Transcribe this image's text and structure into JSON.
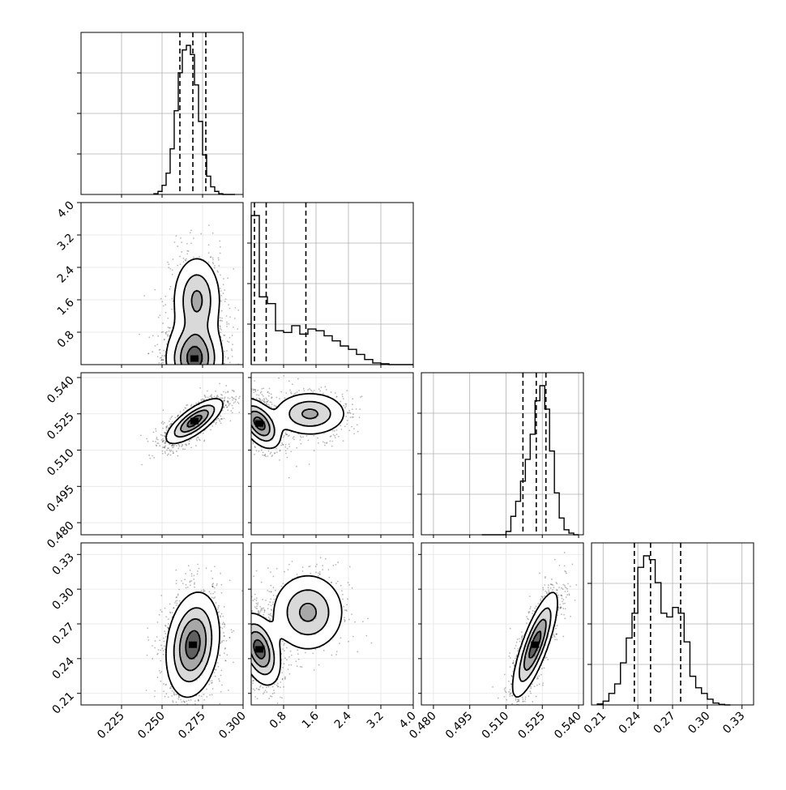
{
  "chart_data": {
    "type": "corner",
    "parameters": [
      {
        "id": "p0",
        "range": [
          0.2,
          0.3
        ],
        "ticks": [
          0.225,
          0.25,
          0.275,
          0.3
        ],
        "tick_labels": [
          "0.225",
          "0.250",
          "0.275",
          "0.300"
        ],
        "quantiles": [
          0.261,
          0.269,
          0.277
        ],
        "mode": 0.27,
        "spread": 0.0085
      },
      {
        "id": "p1",
        "range": [
          0.0,
          4.0
        ],
        "ticks": [
          0.8,
          1.6,
          2.4,
          3.2,
          4.0
        ],
        "tick_labels": [
          "0.8",
          "1.6",
          "2.4",
          "3.2",
          "4.0"
        ],
        "quantiles": [
          0.08,
          0.37,
          1.35
        ],
        "mode": 0.1,
        "spread": 0.5
      },
      {
        "id": "p2",
        "range": [
          0.475,
          0.542
        ],
        "ticks": [
          0.48,
          0.495,
          0.51,
          0.525,
          0.54
        ],
        "tick_labels": [
          "0.480",
          "0.495",
          "0.510",
          "0.525",
          "0.540"
        ],
        "quantiles": [
          0.517,
          0.5225,
          0.5265
        ],
        "mode": 0.5225,
        "spread": 0.0045
      },
      {
        "id": "p3",
        "range": [
          0.2,
          0.34
        ],
        "ticks": [
          0.21,
          0.24,
          0.27,
          0.3,
          0.33
        ],
        "tick_labels": [
          "0.21",
          "0.24",
          "0.27",
          "0.30",
          "0.33"
        ],
        "quantiles": [
          0.237,
          0.251,
          0.277
        ],
        "mode": 0.245,
        "spread": 0.02
      }
    ],
    "histograms": [
      {
        "param": "p0",
        "bins": [
          0.245,
          0.2475,
          0.25,
          0.2525,
          0.255,
          0.2575,
          0.26,
          0.2625,
          0.265,
          0.2675,
          0.27,
          0.2725,
          0.275,
          0.2775,
          0.28,
          0.2825,
          0.285,
          0.2875,
          0.29,
          0.2925,
          0.295
        ],
        "counts": [
          0.5,
          2,
          6,
          14,
          30,
          55,
          80,
          95,
          98,
          92,
          72,
          48,
          26,
          12,
          5,
          2,
          0.5,
          0,
          0,
          0
        ]
      },
      {
        "param": "p1",
        "bins": [
          0.0,
          0.2,
          0.4,
          0.6,
          0.8,
          1.0,
          1.2,
          1.4,
          1.6,
          1.8,
          2.0,
          2.2,
          2.4,
          2.6,
          2.8,
          3.0,
          3.2,
          3.4,
          3.6,
          3.8,
          4.0
        ],
        "counts": [
          88,
          40,
          36,
          20,
          19,
          23,
          18,
          21,
          20,
          17,
          14,
          11,
          9,
          6,
          3,
          1,
          0.5,
          0,
          0,
          0
        ]
      },
      {
        "param": "p2",
        "bins": [
          0.5,
          0.502,
          0.504,
          0.506,
          0.508,
          0.51,
          0.512,
          0.514,
          0.516,
          0.518,
          0.52,
          0.522,
          0.524,
          0.526,
          0.528,
          0.53,
          0.532,
          0.534,
          0.536,
          0.538,
          0.54
        ],
        "counts": [
          0,
          0,
          0,
          0,
          0,
          2,
          11,
          20,
          32,
          45,
          60,
          80,
          89,
          75,
          50,
          25,
          10,
          3,
          1,
          0
        ]
      },
      {
        "param": "p3",
        "bins": [
          0.205,
          0.21,
          0.215,
          0.22,
          0.225,
          0.23,
          0.235,
          0.24,
          0.245,
          0.25,
          0.255,
          0.26,
          0.265,
          0.27,
          0.275,
          0.28,
          0.285,
          0.29,
          0.295,
          0.3,
          0.305,
          0.31,
          0.315,
          0.32
        ],
        "counts": [
          0.5,
          2,
          6,
          11,
          22,
          35,
          48,
          72,
          78,
          76,
          64,
          48,
          46,
          51,
          48,
          33,
          15,
          9,
          6,
          3,
          1,
          0.3,
          0
        ]
      }
    ],
    "joint_2d": [
      {
        "x": "p0",
        "y": "p1",
        "modes": [
          {
            "cx": 0.27,
            "cy": 0.15,
            "sx": 0.0085,
            "sy": 0.45,
            "w": 0.6
          },
          {
            "cx": 0.2715,
            "cy": 1.6,
            "sx": 0.0075,
            "sy": 0.55,
            "w": 0.4
          }
        ]
      },
      {
        "x": "p0",
        "y": "p2",
        "modes": [
          {
            "cx": 0.27,
            "cy": 0.522,
            "sx": 0.0085,
            "sy": 0.0045,
            "w": 1.0,
            "rho": 0.75
          }
        ]
      },
      {
        "x": "p1",
        "y": "p2",
        "modes": [
          {
            "cx": 0.2,
            "cy": 0.521,
            "sx": 0.25,
            "sy": 0.005,
            "w": 0.6,
            "rho": -0.5
          },
          {
            "cx": 1.45,
            "cy": 0.525,
            "sx": 0.45,
            "sy": 0.0045,
            "w": 0.4
          }
        ]
      },
      {
        "x": "p0",
        "y": "p3",
        "modes": [
          {
            "cx": 0.269,
            "cy": 0.252,
            "sx": 0.008,
            "sy": 0.022,
            "w": 1.0,
            "rho": 0.2
          }
        ]
      },
      {
        "x": "p1",
        "y": "p3",
        "modes": [
          {
            "cx": 0.2,
            "cy": 0.248,
            "sx": 0.25,
            "sy": 0.015,
            "w": 0.6,
            "rho": -0.4
          },
          {
            "cx": 1.4,
            "cy": 0.28,
            "sx": 0.45,
            "sy": 0.017,
            "w": 0.4
          }
        ]
      },
      {
        "x": "p2",
        "y": "p3",
        "modes": [
          {
            "cx": 0.522,
            "cy": 0.252,
            "sx": 0.0045,
            "sy": 0.022,
            "w": 1.0,
            "rho": 0.8
          }
        ]
      }
    ],
    "title": "",
    "xlabel": "",
    "ylabel": "",
    "grid": true
  }
}
